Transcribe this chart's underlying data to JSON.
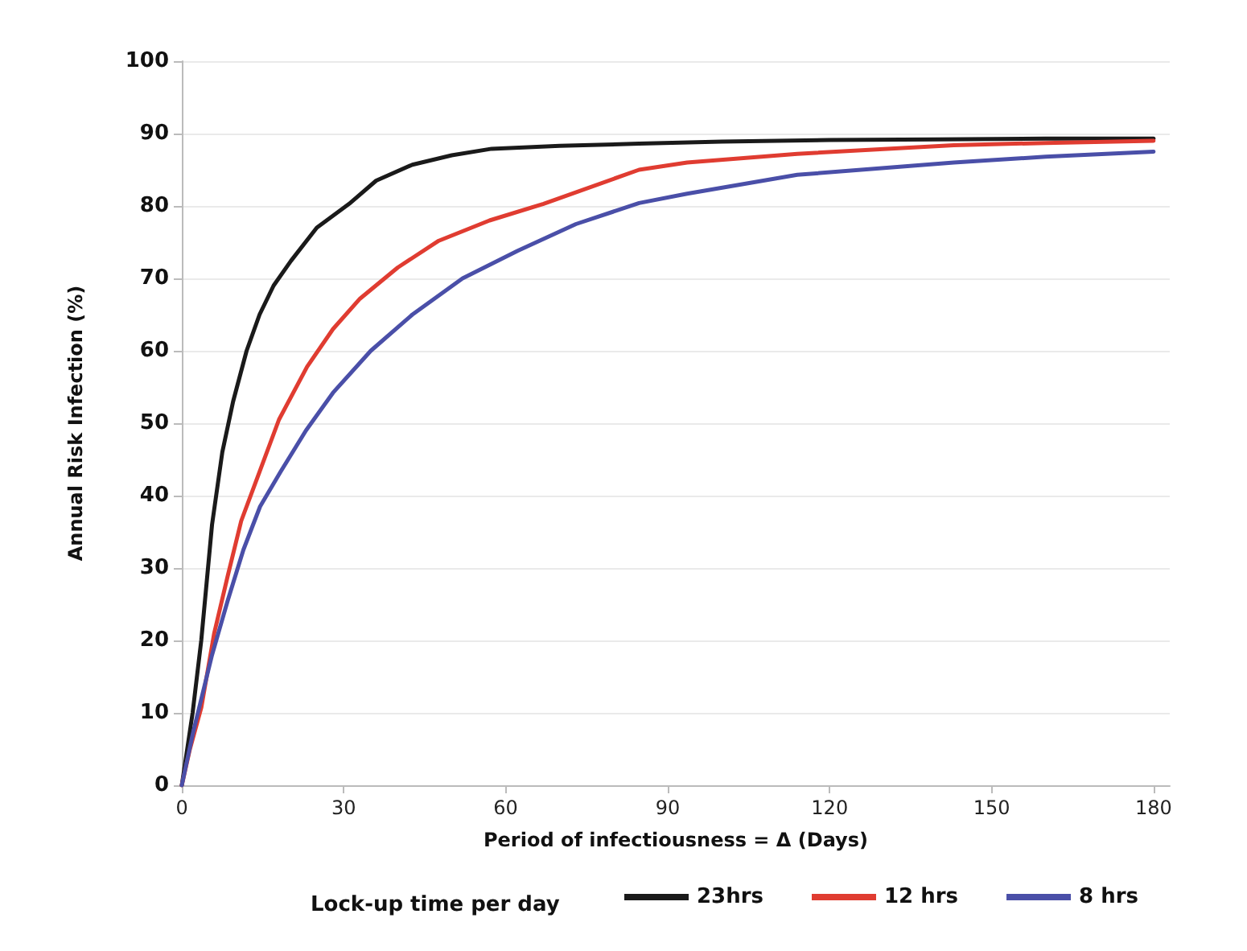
{
  "chart_data": {
    "type": "line",
    "xlabel": "Period of infectiousness = Δ (Days)",
    "ylabel": "Annual Risk Infection (%)",
    "legend_title": "Lock-up time per day",
    "xlim": [
      0,
      183
    ],
    "xticks": [
      0,
      30,
      60,
      90,
      120,
      150,
      180
    ],
    "ylim": [
      0,
      100
    ],
    "yticks": [
      0,
      10,
      20,
      30,
      40,
      50,
      60,
      70,
      80,
      90,
      100
    ],
    "grid": "y",
    "legend": "bottom",
    "line_style": "solid",
    "marker": "none",
    "series": [
      {
        "name": "23hrs",
        "color": "#1a1a1a",
        "x": [
          0,
          2,
          3.6,
          5.6,
          7.5,
          9.5,
          12,
          14.4,
          17,
          20.2,
          25,
          31,
          36,
          42.7,
          50,
          57.4,
          70,
          84.7,
          100,
          120,
          140,
          160,
          180
        ],
        "values": [
          0,
          10,
          20,
          36,
          46,
          53,
          60,
          65,
          69,
          72.4,
          77,
          80.3,
          83.5,
          85.7,
          87,
          87.9,
          88.3,
          88.6,
          88.9,
          89.1,
          89.2,
          89.3,
          89.3
        ]
      },
      {
        "name": "12 hrs",
        "color": "#e03c31",
        "x": [
          0,
          1.5,
          3.6,
          6,
          8.5,
          11,
          14.4,
          18,
          23.2,
          28,
          33,
          40,
          47.6,
          57,
          67,
          84.7,
          93.6,
          114,
          143,
          160,
          180
        ],
        "values": [
          0,
          5,
          10.7,
          21,
          28.9,
          36.5,
          43.3,
          50.5,
          57.8,
          63,
          67.2,
          71.5,
          75.2,
          78,
          80.3,
          85,
          86,
          87.2,
          88.4,
          88.7,
          89
        ]
      },
      {
        "name": "8 hrs",
        "color": "#4a4fa8",
        "x": [
          0,
          2,
          5.6,
          8.5,
          11.4,
          14.5,
          18.3,
          23,
          28,
          35,
          42.7,
          52,
          62.2,
          73,
          84.7,
          93.6,
          114,
          143,
          160,
          180
        ],
        "values": [
          0,
          7,
          18,
          25.5,
          32.5,
          38.5,
          43.3,
          49,
          54.2,
          60,
          65,
          70,
          73.8,
          77.5,
          80.4,
          81.7,
          84.3,
          86,
          86.8,
          87.5
        ]
      }
    ]
  }
}
